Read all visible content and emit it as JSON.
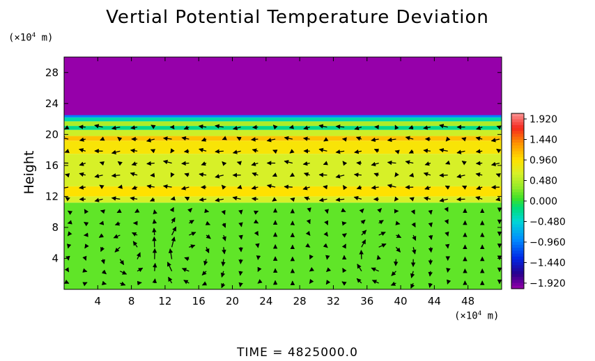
{
  "chart_data": {
    "type": "heatmap",
    "title": "Vertial Potential Temperature Deviation",
    "ylabel": "Height",
    "xlabel": "",
    "x_unit": "(×10",
    "x_unit_exp": "4",
    "x_unit_suffix": " m)",
    "y_unit": "(×10",
    "y_unit_exp": "4",
    "y_unit_suffix": " m)",
    "xlim": [
      0,
      52
    ],
    "ylim": [
      0,
      30
    ],
    "x_ticks": [
      4,
      8,
      12,
      16,
      20,
      24,
      28,
      32,
      36,
      40,
      44,
      48
    ],
    "y_ticks": [
      4,
      8,
      12,
      16,
      20,
      24,
      28
    ],
    "colorbar_ticks": [
      "1.920",
      "1.440",
      "0.960",
      "0.480",
      "0.000",
      "−0.480",
      "−0.960",
      "−1.440",
      "−1.920"
    ],
    "colorbar_range": [
      -1.92,
      1.92
    ],
    "layers": [
      {
        "y_from": 0,
        "y_to": 11.2,
        "value": 0.15
      },
      {
        "y_from": 11.2,
        "y_to": 12.0,
        "value": 0.6
      },
      {
        "y_from": 12.0,
        "y_to": 13.3,
        "value": 0.9
      },
      {
        "y_from": 13.3,
        "y_to": 17.5,
        "value": 0.6
      },
      {
        "y_from": 17.5,
        "y_to": 19.2,
        "value": 0.85
      },
      {
        "y_from": 19.2,
        "y_to": 19.8,
        "value": 1.05
      },
      {
        "y_from": 19.8,
        "y_to": 20.6,
        "value": 0.55
      },
      {
        "y_from": 20.6,
        "y_to": 21.1,
        "value": -0.2
      },
      {
        "y_from": 21.1,
        "y_to": 21.7,
        "value": 0.4
      },
      {
        "y_from": 21.7,
        "y_to": 22.2,
        "value": -0.3
      },
      {
        "y_from": 22.2,
        "y_to": 22.5,
        "value": -0.9
      },
      {
        "y_from": 22.5,
        "y_to": 30,
        "value": -1.92
      }
    ],
    "vortices": [
      {
        "x": 7.5,
        "y": 4.5,
        "direction": "cw"
      },
      {
        "x": 14.5,
        "y": 4.5,
        "direction": "ccw"
      },
      {
        "x": 37.5,
        "y": 4,
        "direction": "ccw"
      }
    ]
  },
  "footer": {
    "time_label": "TIME  =  4825000.0"
  }
}
